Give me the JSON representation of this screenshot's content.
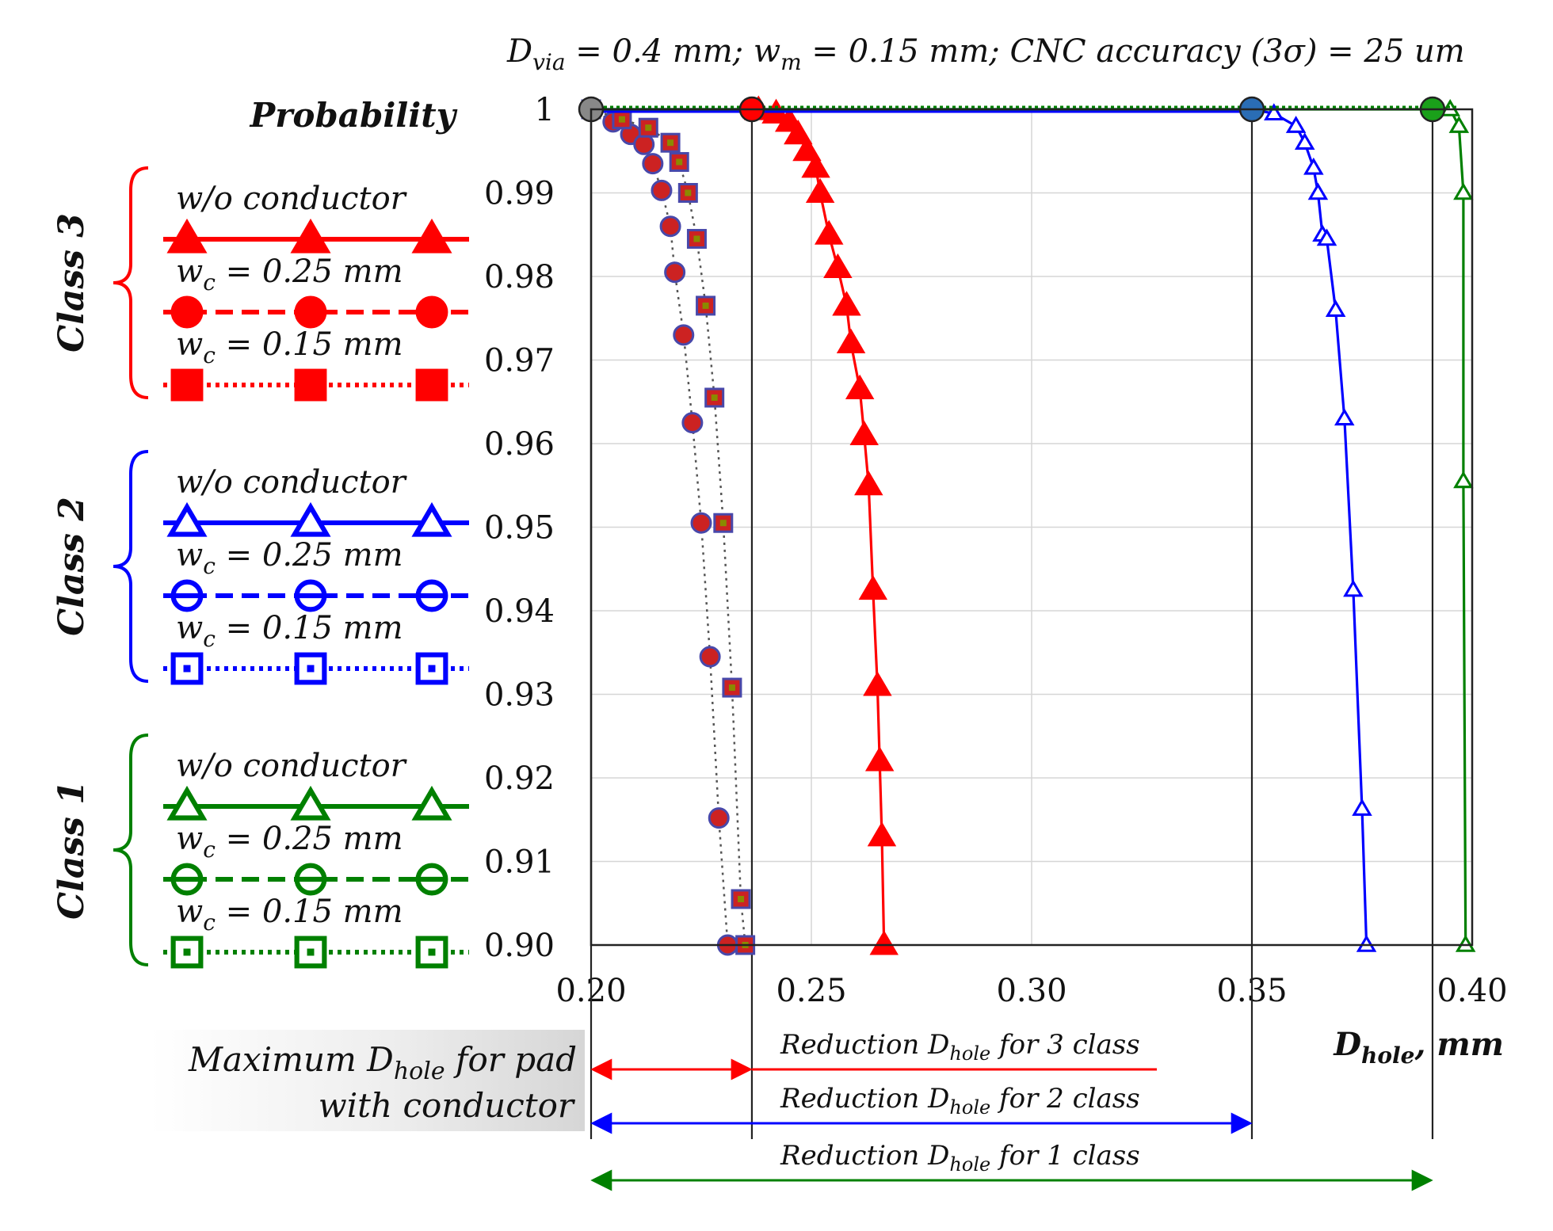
{
  "chart_data": {
    "type": "line",
    "title": {
      "main": "D",
      "sub": "via",
      "rest": " = 0.4 mm; w",
      "sub2": "m",
      "rest2": " = 0.15 mm; CNC accuracy (3σ) = 25 um"
    },
    "ylabel": "Probability",
    "xlabel": {
      "main": "D",
      "sub": "hole",
      "rest": ", mm"
    },
    "xlim": [
      0.2,
      0.4
    ],
    "ylim": [
      0.9,
      1.0
    ],
    "x_ticks": [
      "0.20",
      "0.25",
      "0.30",
      "0.35",
      "0.40"
    ],
    "y_ticks": [
      "0.90",
      "0.91",
      "0.92",
      "0.93",
      "0.94",
      "0.95",
      "0.96",
      "0.97",
      "0.98",
      "0.99",
      "1"
    ],
    "grid": true,
    "colors": {
      "class3": "#ff0000",
      "class2": "#0000ff",
      "class1": "#008000",
      "gray": "#555555"
    },
    "series": [
      {
        "name": "Class 3 w/o conductor",
        "class": 3,
        "color": "#ff0000",
        "marker": "triangle-filled",
        "dash": "solid",
        "points": [
          [
            0.238,
            0.9999
          ],
          [
            0.242,
            0.9995
          ],
          [
            0.245,
            0.9985
          ],
          [
            0.247,
            0.997
          ],
          [
            0.249,
            0.995
          ],
          [
            0.251,
            0.993
          ],
          [
            0.252,
            0.99
          ],
          [
            0.254,
            0.985
          ],
          [
            0.256,
            0.981
          ],
          [
            0.258,
            0.9765
          ],
          [
            0.259,
            0.972
          ],
          [
            0.261,
            0.9665
          ],
          [
            0.262,
            0.961
          ],
          [
            0.263,
            0.955
          ],
          [
            0.264,
            0.9425
          ],
          [
            0.265,
            0.931
          ],
          [
            0.2655,
            0.922
          ],
          [
            0.266,
            0.913
          ],
          [
            0.2665,
            0.9
          ]
        ]
      },
      {
        "name": "Class 3 w_c = 0.25 mm",
        "class": 3,
        "color": "#ff0000",
        "marker": "circle-filled",
        "dash": "dashed",
        "points": [
          [
            0.2,
            1.0
          ],
          [
            0.205,
            0.9985
          ],
          [
            0.209,
            0.997
          ],
          [
            0.212,
            0.9958
          ],
          [
            0.214,
            0.9935
          ],
          [
            0.216,
            0.9903
          ],
          [
            0.218,
            0.986
          ],
          [
            0.219,
            0.9805
          ],
          [
            0.221,
            0.973
          ],
          [
            0.223,
            0.9625
          ],
          [
            0.225,
            0.9505
          ],
          [
            0.227,
            0.9345
          ],
          [
            0.229,
            0.9152
          ],
          [
            0.231,
            0.9
          ]
        ]
      },
      {
        "name": "Class 3 w_c = 0.15 mm",
        "class": 3,
        "color": "#ff0000",
        "marker": "square-filled",
        "dash": "dotted",
        "points": [
          [
            0.2,
            1.0
          ],
          [
            0.207,
            0.9988
          ],
          [
            0.213,
            0.9978
          ],
          [
            0.218,
            0.996
          ],
          [
            0.22,
            0.9937
          ],
          [
            0.222,
            0.99
          ],
          [
            0.224,
            0.9845
          ],
          [
            0.226,
            0.9765
          ],
          [
            0.228,
            0.9655
          ],
          [
            0.23,
            0.9505
          ],
          [
            0.232,
            0.9308
          ],
          [
            0.234,
            0.9055
          ],
          [
            0.235,
            0.9
          ]
        ]
      },
      {
        "name": "Class 2 w/o conductor",
        "class": 2,
        "color": "#0000ff",
        "marker": "triangle-open",
        "dash": "solid",
        "points": [
          [
            0.2,
            1.0
          ],
          [
            0.35,
            1.0
          ],
          [
            0.355,
            0.9995
          ],
          [
            0.36,
            0.998
          ],
          [
            0.362,
            0.996
          ],
          [
            0.364,
            0.993
          ],
          [
            0.365,
            0.99
          ],
          [
            0.366,
            0.985
          ],
          [
            0.367,
            0.9845
          ],
          [
            0.369,
            0.976
          ],
          [
            0.371,
            0.963
          ],
          [
            0.373,
            0.9425
          ],
          [
            0.375,
            0.9163
          ],
          [
            0.376,
            0.9
          ]
        ]
      },
      {
        "name": "Class 2 w_c = 0.25 mm",
        "class": 2,
        "color": "#0000ff",
        "marker": "circle-open",
        "dash": "dashed",
        "points": []
      },
      {
        "name": "Class 2 w_c = 0.15 mm",
        "class": 2,
        "color": "#0000ff",
        "marker": "square-open",
        "dash": "dotted",
        "points": []
      },
      {
        "name": "Class 1 w/o conductor",
        "class": 1,
        "color": "#008000",
        "marker": "triangle-open",
        "dash": "solid",
        "points": [
          [
            0.2,
            1.0
          ],
          [
            0.395,
            1.0
          ],
          [
            0.397,
            0.998
          ],
          [
            0.398,
            0.99
          ],
          [
            0.398,
            0.9555
          ],
          [
            0.3985,
            0.9
          ]
        ]
      },
      {
        "name": "Class 1 w_c = 0.25 mm",
        "class": 1,
        "color": "#008000",
        "marker": "circle-open",
        "dash": "dashed",
        "points": []
      },
      {
        "name": "Class 1 w_c = 0.15 mm",
        "class": 1,
        "color": "#008000",
        "marker": "square-open",
        "dash": "dotted",
        "points": []
      }
    ],
    "key_points": [
      {
        "x": 0.2,
        "y": 1.0,
        "color": "#888888"
      },
      {
        "x": 0.2365,
        "y": 1.0,
        "color": "#ff0000"
      },
      {
        "x": 0.35,
        "y": 1.0,
        "color": "#2a6db5"
      },
      {
        "x": 0.391,
        "y": 1.0,
        "color": "#1aa01a"
      }
    ],
    "vertical_lines": [
      0.2,
      0.2365,
      0.35,
      0.391
    ],
    "legend": {
      "groups": [
        {
          "class_label": "Class 3",
          "color": "#ff0000",
          "items": [
            {
              "kind": "plain",
              "text": "w/o conductor",
              "marker": "triangle-filled",
              "dash": "solid"
            },
            {
              "kind": "wc",
              "sym": "w",
              "sub": "c",
              "value": " = 0.25 mm",
              "marker": "circle-filled",
              "dash": "dashed"
            },
            {
              "kind": "wc",
              "sym": "w",
              "sub": "c",
              "value": " = 0.15 mm",
              "marker": "square-filled",
              "dash": "dotted"
            }
          ]
        },
        {
          "class_label": "Class 2",
          "color": "#0000ff",
          "items": [
            {
              "kind": "plain",
              "text": "w/o conductor",
              "marker": "triangle-open",
              "dash": "solid"
            },
            {
              "kind": "wc",
              "sym": "w",
              "sub": "c",
              "value": " = 0.25 mm",
              "marker": "circle-open",
              "dash": "dashed"
            },
            {
              "kind": "wc",
              "sym": "w",
              "sub": "c",
              "value": " = 0.15 mm",
              "marker": "square-open",
              "dash": "dotted"
            }
          ]
        },
        {
          "class_label": "Class 1",
          "color": "#008000",
          "items": [
            {
              "kind": "plain",
              "text": "w/o conductor",
              "marker": "triangle-open",
              "dash": "solid"
            },
            {
              "kind": "wc",
              "sym": "w",
              "sub": "c",
              "value": " = 0.25 mm",
              "marker": "circle-open",
              "dash": "dashed"
            },
            {
              "kind": "wc",
              "sym": "w",
              "sub": "c",
              "value": " = 0.15 mm",
              "marker": "square-open",
              "dash": "dotted"
            }
          ]
        }
      ]
    },
    "annotations": {
      "max_label_line1": {
        "pre": "Maximum D",
        "sub": "hole",
        "post": " for pad"
      },
      "max_label_line2": "with conductor",
      "reductions": [
        {
          "pre": "Reduction D",
          "sub": "hole",
          "post": " for 3 class",
          "color": "#ff0000",
          "x_end": 0.2365
        },
        {
          "pre": "Reduction D",
          "sub": "hole",
          "post": " for 2 class",
          "color": "#0000ff",
          "x_end": 0.35
        },
        {
          "pre": "Reduction D",
          "sub": "hole",
          "post": " for 1 class",
          "color": "#008000",
          "x_end": 0.391
        }
      ]
    }
  }
}
